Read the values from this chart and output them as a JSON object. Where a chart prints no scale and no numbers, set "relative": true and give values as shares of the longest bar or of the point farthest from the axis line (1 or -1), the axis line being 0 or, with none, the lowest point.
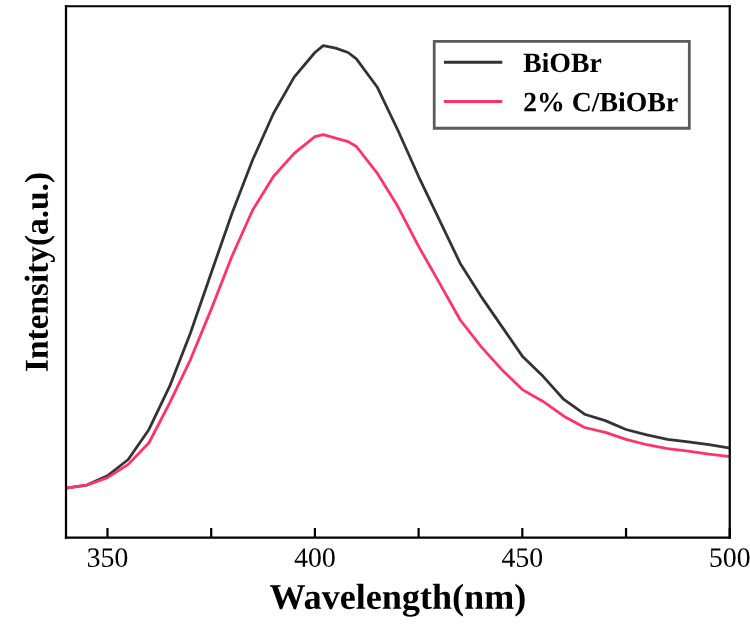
{
  "chart_data": {
    "type": "line",
    "xlabel": "Wavelength(nm)",
    "ylabel": "Intensity(a.u.)",
    "relative": true,
    "legend": "top right",
    "grid": false,
    "x": [
      340,
      345,
      350,
      355,
      360,
      365,
      370,
      375,
      380,
      385,
      390,
      395,
      400,
      402,
      405,
      408,
      410,
      415,
      420,
      425,
      430,
      435,
      440,
      445,
      450,
      455,
      460,
      465,
      470,
      475,
      480,
      485,
      490,
      495,
      500
    ],
    "xlim": [
      340,
      500
    ],
    "xticks": [
      350,
      {
        "value": 375,
        "label": null
      },
      400,
      {
        "value": 425,
        "label": null
      },
      450,
      {
        "value": 475,
        "label": null
      },
      500
    ],
    "series": [
      {
        "name": "BiOBr",
        "color": "#333333",
        "values": [
          0.101,
          0.107,
          0.126,
          0.159,
          0.22,
          0.308,
          0.416,
          0.538,
          0.659,
          0.768,
          0.862,
          0.936,
          0.986,
          1.0,
          0.995,
          0.986,
          0.973,
          0.916,
          0.828,
          0.734,
          0.646,
          0.558,
          0.491,
          0.43,
          0.369,
          0.328,
          0.281,
          0.251,
          0.238,
          0.22,
          0.209,
          0.2,
          0.195,
          0.189,
          0.182
        ]
      },
      {
        "name": "2% C/BiOBr",
        "color": "#ff3366",
        "values": [
          0.101,
          0.107,
          0.122,
          0.149,
          0.193,
          0.274,
          0.362,
          0.464,
          0.572,
          0.666,
          0.734,
          0.781,
          0.815,
          0.819,
          0.812,
          0.805,
          0.795,
          0.741,
          0.673,
          0.592,
          0.518,
          0.443,
          0.389,
          0.342,
          0.301,
          0.277,
          0.247,
          0.224,
          0.214,
          0.2,
          0.189,
          0.181,
          0.176,
          0.17,
          0.165
        ]
      }
    ]
  }
}
